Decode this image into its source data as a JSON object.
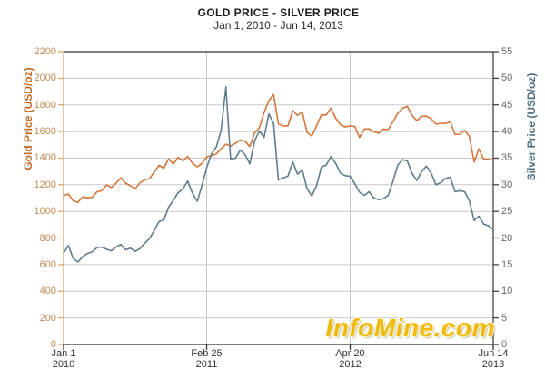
{
  "header": {
    "title": "GOLD PRICE - SILVER PRICE",
    "subtitle": "Jan 1, 2010 - Jun 14, 2013"
  },
  "watermark": {
    "text": "InfoMine.com",
    "color": "#EFB90E"
  },
  "chart_data": {
    "type": "line",
    "title": "GOLD PRICE - SILVER PRICE",
    "subtitle": "Jan 1, 2010 - Jun 14, 2013",
    "grid": true,
    "grid_color": "#C9C9C9",
    "frame_color": "#333333",
    "x_axis": {
      "label_color": "#333333",
      "x_start": "Jan 1, 2010",
      "x_end": "Jun 14, 2013",
      "sampling_interval_days": 14,
      "ticks": [
        {
          "line1": "Jan 1",
          "line2": "2010",
          "pos": 0
        },
        {
          "line1": "Feb 25",
          "line2": "2011",
          "pos": 0.333
        },
        {
          "line1": "Apr 20",
          "line2": "2012",
          "pos": 0.667
        },
        {
          "line1": "Jun 14",
          "line2": "2013",
          "pos": 1
        }
      ]
    },
    "left_axis": {
      "title": "Gold Price (USD/oz)",
      "min": 0,
      "max": 2200,
      "tick_step": 200,
      "line_color": "#D4A96E",
      "label_color": "#C28B55",
      "title_color": "#C2681F"
    },
    "right_axis": {
      "title": "Silver Price (USD/oz)",
      "min": 0,
      "max": 55,
      "tick_step": 5,
      "line_color": "#444444",
      "label_color": "#666666",
      "title_color": "#4E7082"
    },
    "series": [
      {
        "id": "gold-price",
        "name": "Gold Price",
        "axis": "left",
        "color": "#D4763A",
        "values": [
          1120,
          1130,
          1080,
          1068,
          1108,
          1102,
          1105,
          1148,
          1155,
          1198,
          1180,
          1212,
          1252,
          1212,
          1192,
          1170,
          1215,
          1237,
          1246,
          1296,
          1345,
          1325,
          1394,
          1356,
          1405,
          1380,
          1412,
          1362,
          1335,
          1360,
          1410,
          1418,
          1432,
          1470,
          1505,
          1490,
          1512,
          1535,
          1528,
          1486,
          1590,
          1628,
          1742,
          1832,
          1878,
          1658,
          1642,
          1642,
          1756,
          1722,
          1746,
          1594,
          1566,
          1642,
          1726,
          1724,
          1776,
          1700,
          1652,
          1634,
          1642,
          1638,
          1555,
          1618,
          1620,
          1598,
          1588,
          1618,
          1614,
          1672,
          1736,
          1774,
          1790,
          1720,
          1682,
          1714,
          1716,
          1696,
          1656,
          1662,
          1660,
          1672,
          1578,
          1580,
          1608,
          1564,
          1372,
          1470,
          1392,
          1390,
          1387
        ]
      },
      {
        "id": "silver-price",
        "name": "Silver Price",
        "axis": "right",
        "color": "#5F7D8C",
        "values": [
          17.2,
          18.6,
          16.2,
          15.5,
          16.5,
          17.1,
          17.4,
          18.2,
          18.3,
          17.9,
          17.6,
          18.3,
          18.8,
          17.8,
          18.1,
          17.5,
          18.0,
          19.0,
          19.9,
          21.4,
          23.1,
          23.4,
          25.8,
          27.1,
          28.5,
          29.2,
          30.7,
          28.4,
          26.9,
          29.9,
          33.3,
          35.8,
          37.1,
          40.2,
          48.4,
          34.8,
          35.0,
          36.5,
          35.7,
          33.9,
          38.2,
          40.1,
          38.9,
          43.3,
          41.5,
          30.9,
          31.3,
          31.6,
          34.3,
          32.0,
          32.8,
          29.3,
          27.9,
          29.8,
          33.3,
          33.7,
          35.3,
          34.0,
          32.2,
          31.7,
          31.6,
          30.2,
          28.6,
          28.0,
          28.7,
          27.5,
          27.2,
          27.4,
          28.0,
          30.6,
          33.7,
          34.7,
          34.5,
          32.1,
          30.8,
          32.5,
          33.5,
          32.2,
          30.0,
          30.4,
          31.2,
          31.4,
          28.7,
          28.9,
          28.7,
          27.0,
          23.3,
          24.1,
          22.6,
          22.3,
          21.6
        ]
      }
    ]
  }
}
